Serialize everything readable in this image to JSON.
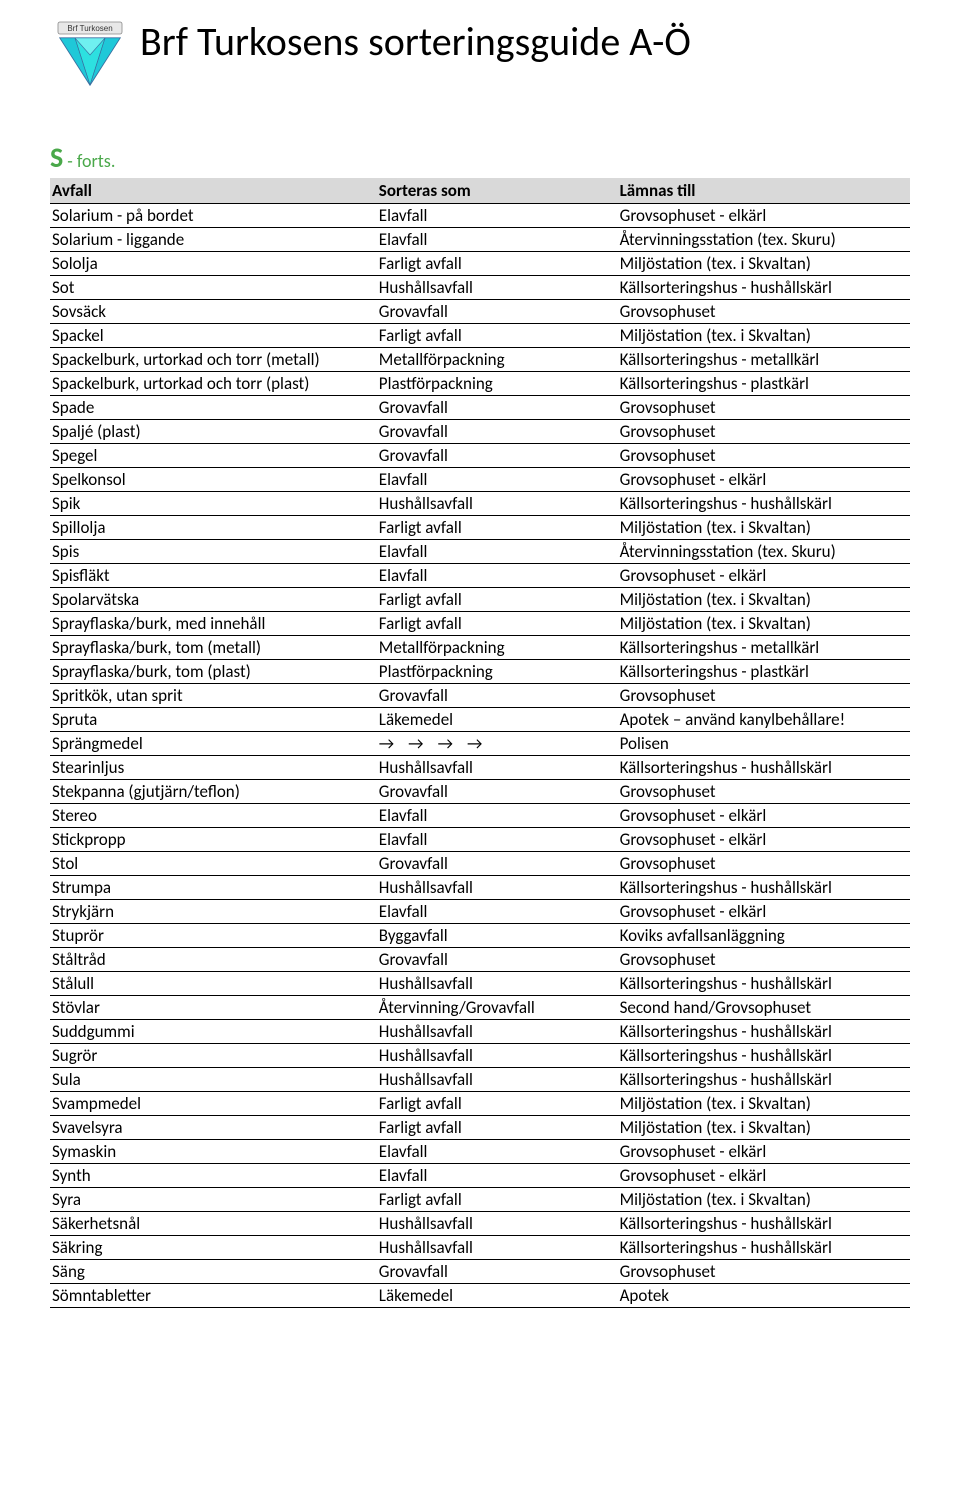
{
  "logo": {
    "label": "Brf Turkosen",
    "fill_color": "#2de0e0",
    "stroke_color": "#3a6fa0"
  },
  "title": "Brf Turkosens sorteringsguide A-Ö",
  "section": {
    "letter": "S",
    "suffix": " - forts."
  },
  "table": {
    "columns": [
      "Avfall",
      "Sorteras som",
      "Lämnas till"
    ],
    "rows": [
      [
        "Solarium - på bordet",
        "Elavfall",
        "Grovsophuset - elkärl"
      ],
      [
        "Solarium - liggande",
        "Elavfall",
        "Återvinningsstation (tex. Skuru)"
      ],
      [
        "Sololja",
        "Farligt avfall",
        "Miljöstation (tex. i Skvaltan)"
      ],
      [
        "Sot",
        "Hushållsavfall",
        "Källsorteringshus - hushållskärl"
      ],
      [
        "Sovsäck",
        "Grovavfall",
        "Grovsophuset"
      ],
      [
        "Spackel",
        "Farligt avfall",
        "Miljöstation (tex. i Skvaltan)"
      ],
      [
        "Spackelburk, urtorkad och torr (metall)",
        "Metallförpackning",
        "Källsorteringshus - metallkärl"
      ],
      [
        "Spackelburk, urtorkad och torr (plast)",
        "Plastförpackning",
        "Källsorteringshus - plastkärl"
      ],
      [
        "Spade",
        "Grovavfall",
        "Grovsophuset"
      ],
      [
        "Spaljé (plast)",
        "Grovavfall",
        "Grovsophuset"
      ],
      [
        "Spegel",
        "Grovavfall",
        "Grovsophuset"
      ],
      [
        "Spelkonsol",
        "Elavfall",
        "Grovsophuset - elkärl"
      ],
      [
        "Spik",
        "Hushållsavfall",
        "Källsorteringshus - hushållskärl"
      ],
      [
        "Spillolja",
        "Farligt avfall",
        "Miljöstation (tex. i Skvaltan)"
      ],
      [
        "Spis",
        "Elavfall",
        "Återvinningsstation (tex. Skuru)"
      ],
      [
        "Spisfläkt",
        "Elavfall",
        "Grovsophuset - elkärl"
      ],
      [
        "Spolarvätska",
        "Farligt avfall",
        "Miljöstation (tex. i Skvaltan)"
      ],
      [
        "Sprayflaska/burk, med innehåll",
        "Farligt avfall",
        "Miljöstation (tex. i Skvaltan)"
      ],
      [
        "Sprayflaska/burk, tom (metall)",
        "Metallförpackning",
        "Källsorteringshus - metallkärl"
      ],
      [
        "Sprayflaska/burk, tom (plast)",
        "Plastförpackning",
        "Källsorteringshus - plastkärl"
      ],
      [
        "Spritkök, utan sprit",
        "Grovavfall",
        "Grovsophuset"
      ],
      [
        "Spruta",
        "Läkemedel",
        "Apotek – använd kanylbehållare!"
      ],
      [
        "Sprängmedel",
        "→→→→",
        "Polisen"
      ],
      [
        "Stearinljus",
        "Hushållsavfall",
        "Källsorteringshus - hushållskärl"
      ],
      [
        "Stekpanna (gjutjärn/teflon)",
        "Grovavfall",
        "Grovsophuset"
      ],
      [
        "Stereo",
        "Elavfall",
        "Grovsophuset - elkärl"
      ],
      [
        "Stickpropp",
        "Elavfall",
        "Grovsophuset - elkärl"
      ],
      [
        "Stol",
        "Grovavfall",
        "Grovsophuset"
      ],
      [
        "Strumpa",
        "Hushållsavfall",
        "Källsorteringshus - hushållskärl"
      ],
      [
        "Strykjärn",
        "Elavfall",
        "Grovsophuset - elkärl"
      ],
      [
        "Stuprör",
        "Byggavfall",
        "Koviks avfallsanläggning"
      ],
      [
        "Ståltråd",
        "Grovavfall",
        "Grovsophuset"
      ],
      [
        "Stålull",
        "Hushållsavfall",
        "Källsorteringshus - hushållskärl"
      ],
      [
        "Stövlar",
        "Återvinning/Grovavfall",
        "Second hand/Grovsophuset"
      ],
      [
        "Suddgummi",
        "Hushållsavfall",
        "Källsorteringshus - hushållskärl"
      ],
      [
        "Sugrör",
        "Hushållsavfall",
        "Källsorteringshus - hushållskärl"
      ],
      [
        "Sula",
        "Hushållsavfall",
        "Källsorteringshus - hushållskärl"
      ],
      [
        "Svampmedel",
        "Farligt avfall",
        "Miljöstation (tex. i Skvaltan)"
      ],
      [
        "Svavelsyra",
        "Farligt avfall",
        "Miljöstation (tex. i Skvaltan)"
      ],
      [
        "Symaskin",
        "Elavfall",
        "Grovsophuset - elkärl"
      ],
      [
        "Synth",
        "Elavfall",
        "Grovsophuset - elkärl"
      ],
      [
        "Syra",
        "Farligt avfall",
        "Miljöstation (tex. i Skvaltan)"
      ],
      [
        "Säkerhetsnål",
        "Hushållsavfall",
        "Källsorteringshus - hushållskärl"
      ],
      [
        "Säkring",
        "Hushållsavfall",
        "Källsorteringshus - hushållskärl"
      ],
      [
        "Säng",
        "Grovavfall",
        "Grovsophuset"
      ],
      [
        "Sömntabletter",
        "Läkemedel",
        "Apotek"
      ]
    ]
  },
  "colors": {
    "header_bg": "#d9d9d9",
    "section_color": "#4aa84a",
    "text": "#000000",
    "background": "#ffffff"
  }
}
